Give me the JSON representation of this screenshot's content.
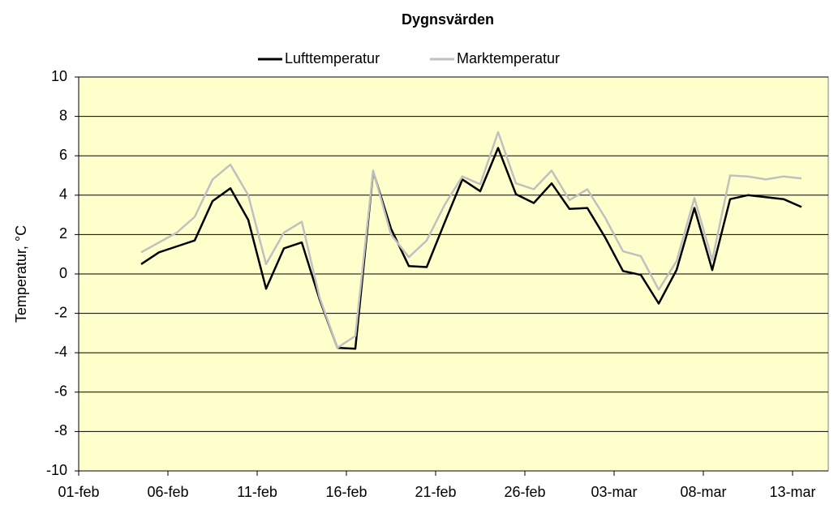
{
  "chart_data": {
    "type": "line",
    "title": "Dygnsvärden",
    "y_label": "Temperatur, °C",
    "categories": [
      "01-feb",
      null,
      null,
      null,
      null,
      "06-feb",
      null,
      null,
      null,
      null,
      "11-feb",
      null,
      null,
      null,
      null,
      "16-feb",
      null,
      null,
      null,
      null,
      "21-feb",
      null,
      null,
      null,
      null,
      "26-feb",
      null,
      null,
      null,
      null,
      "03-mar",
      null,
      null,
      null,
      null,
      "08-mar",
      null,
      null,
      null,
      null,
      "13-mar",
      null
    ],
    "series": [
      {
        "name": "Lufttemperatur",
        "color": "#000000",
        "values": [
          null,
          null,
          null,
          0.5,
          1.1,
          1.4,
          1.7,
          3.7,
          4.35,
          2.75,
          -0.75,
          1.3,
          1.6,
          -1.3,
          -3.75,
          -3.8,
          5.2,
          2.3,
          0.4,
          0.35,
          2.6,
          4.8,
          4.2,
          6.4,
          4.05,
          3.6,
          4.6,
          3.3,
          3.35,
          1.85,
          0.15,
          -0.05,
          -1.5,
          0.2,
          3.35,
          0.2,
          3.8,
          4.0,
          3.9,
          3.8,
          3.4,
          null
        ]
      },
      {
        "name": "Marktemperatur",
        "color": "#c0c0c0",
        "values": [
          null,
          null,
          null,
          1.1,
          1.6,
          2.1,
          2.9,
          4.8,
          5.55,
          4.0,
          0.5,
          2.1,
          2.65,
          -1.2,
          -3.75,
          -3.15,
          5.25,
          2.0,
          0.85,
          1.7,
          3.5,
          4.95,
          4.55,
          7.2,
          4.6,
          4.3,
          5.25,
          3.75,
          4.3,
          2.85,
          1.15,
          0.9,
          -0.8,
          0.65,
          3.85,
          0.7,
          5.0,
          4.95,
          4.8,
          4.95,
          4.85,
          null
        ]
      }
    ],
    "ylim": [
      -10,
      10
    ],
    "yticks": [
      -10,
      -8,
      -6,
      -4,
      -2,
      0,
      2,
      4,
      6,
      8,
      10
    ],
    "grid": true,
    "plot_background": "#ffffcc",
    "legend": "top"
  }
}
